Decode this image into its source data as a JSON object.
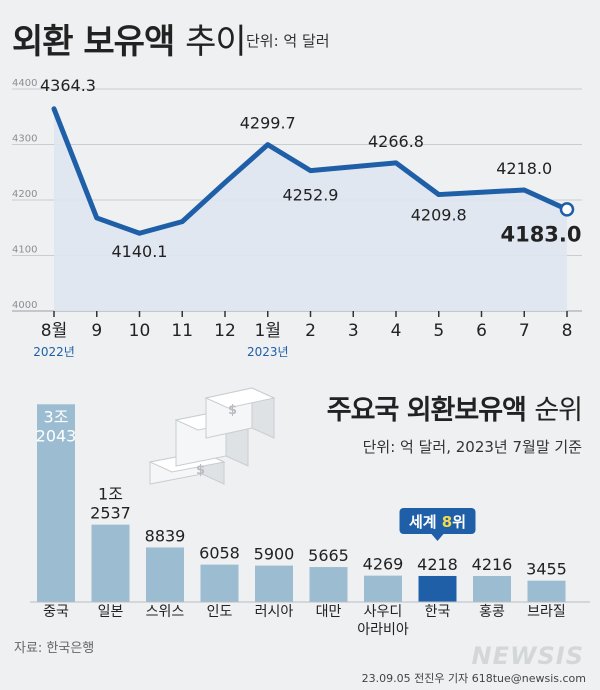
{
  "title": {
    "bold": "외환 보유액",
    "light": "추이"
  },
  "unit": "단위: 억 달러",
  "chart_data": [
    {
      "type": "line",
      "x": [
        "8월",
        "9",
        "10",
        "11",
        "12",
        "1월",
        "2",
        "3",
        "4",
        "5",
        "6",
        "7",
        "8"
      ],
      "year_labels": [
        {
          "index": 0,
          "text": "2022년"
        },
        {
          "index": 5,
          "text": "2023년"
        }
      ],
      "values": [
        4364.3,
        4167.7,
        4140.1,
        4161.0,
        4231.4,
        4299.7,
        4252.9,
        4260.0,
        4266.8,
        4209.8,
        4214.0,
        4218.0,
        4183.0
      ],
      "data_labels": [
        {
          "index": 0,
          "text": "4364.3"
        },
        {
          "index": 2,
          "text": "4140.1"
        },
        {
          "index": 5,
          "text": "4299.7"
        },
        {
          "index": 6,
          "text": "4252.9"
        },
        {
          "index": 8,
          "text": "4266.8"
        },
        {
          "index": 9,
          "text": "4209.8"
        },
        {
          "index": 11,
          "text": "4218.0"
        },
        {
          "index": 12,
          "text": "4183.0"
        }
      ],
      "yticks": [
        4000,
        4100,
        4200,
        4300,
        4400
      ],
      "ylim": [
        4000,
        4400
      ],
      "grid": true,
      "colors": {
        "line": "#1f5fa8",
        "area": "#dfe6ef"
      }
    },
    {
      "type": "bar",
      "title": {
        "bold": "주요국 외환보유액",
        "light": "순위"
      },
      "subtitle": "단위: 억 달러, 2023년 7월말 기준",
      "categories": [
        "중국",
        "일본",
        "스위스",
        "인도",
        "러시아",
        "대만",
        "사우디\n아라비아",
        "한국",
        "홍콩",
        "브라질"
      ],
      "values": [
        32043,
        12537,
        8839,
        6058,
        5900,
        5665,
        4269,
        4218,
        4216,
        3455
      ],
      "value_labels": [
        "3조\n2043",
        "1조\n2537",
        "8839",
        "6058",
        "5900",
        "5665",
        "4269",
        "4218",
        "4216",
        "3455"
      ],
      "highlight": {
        "index": 7,
        "badge_prefix": "세계",
        "badge_rank": "8",
        "badge_suffix": "위"
      },
      "colors": {
        "bar": "#9cbcd2",
        "highlight": "#1f5fa8",
        "badge": "#1f5fa8",
        "badge_rank": "#f5d94a"
      }
    }
  ],
  "source": "자료: 한국은행",
  "credit": "23.09.05 전진우 기자 618tue@newsis.com",
  "logo": "NEWSIS"
}
